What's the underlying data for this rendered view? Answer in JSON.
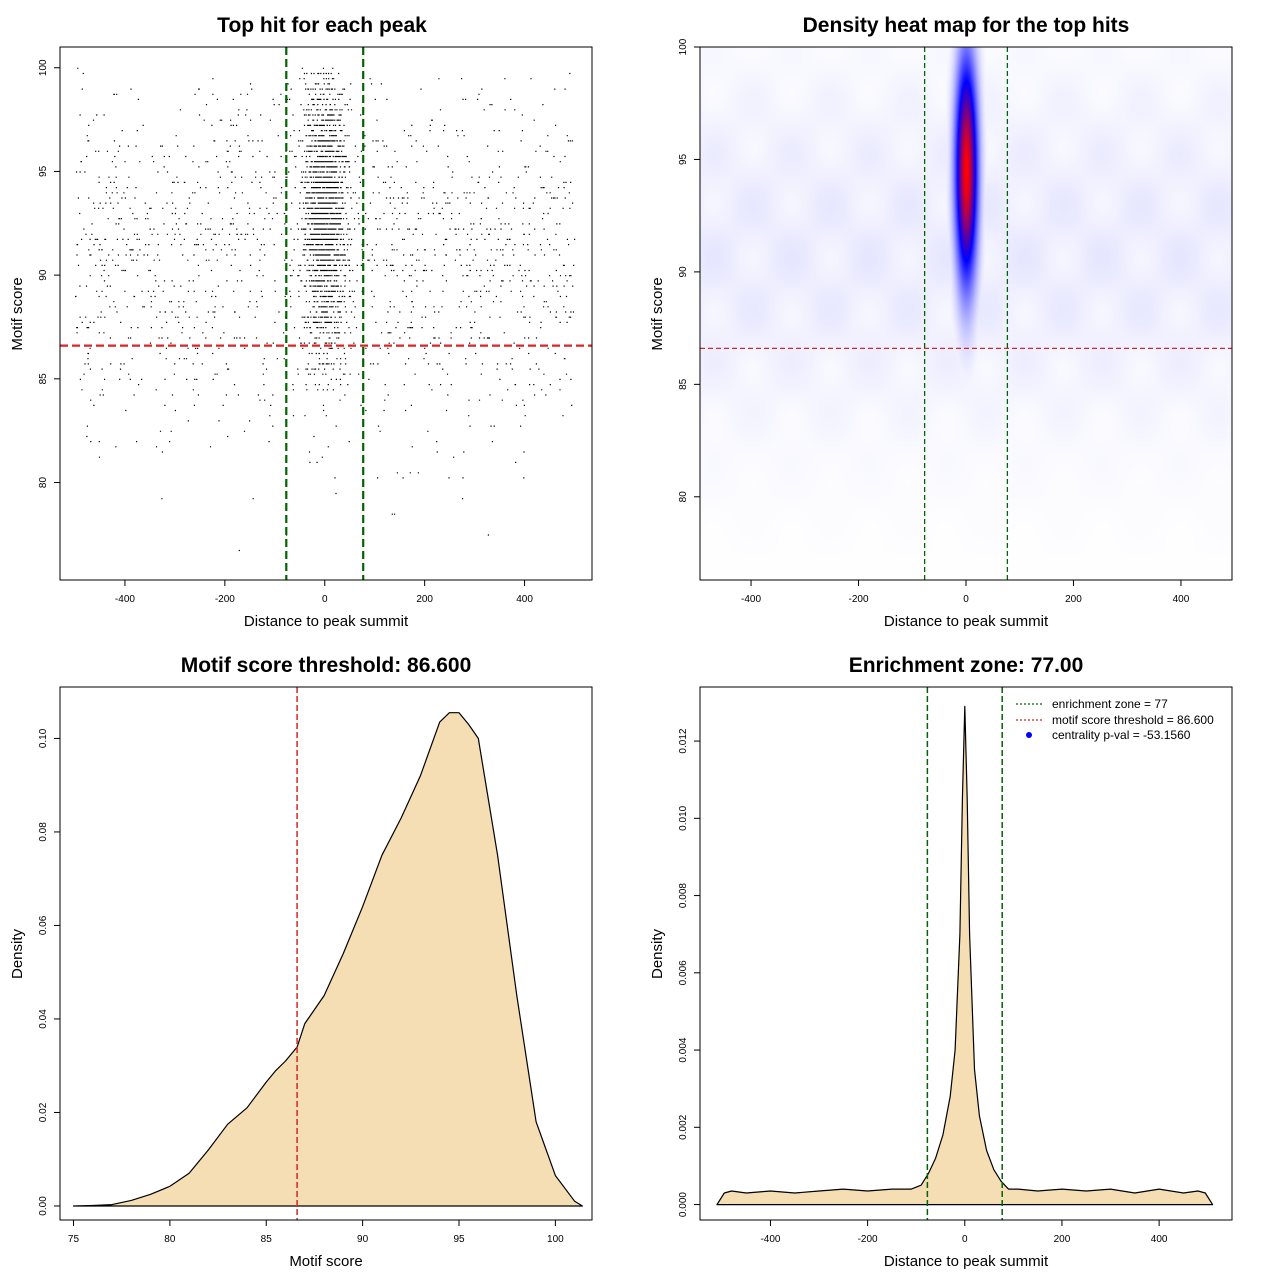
{
  "chart_data": [
    {
      "id": "scatter",
      "type": "scatter",
      "title": "Top hit for each peak",
      "xlabel": "Distance to peak summit",
      "ylabel": "Motif score",
      "xlim": [
        -530,
        535
      ],
      "ylim": [
        75.3,
        101
      ],
      "xticks": [
        -400,
        -200,
        0,
        200,
        400
      ],
      "yticks": [
        80,
        85,
        90,
        95,
        100
      ],
      "vlines": [
        -77,
        77
      ],
      "hlines": [
        86.6
      ],
      "vline_color": "#006400",
      "hline_color": "#d62728",
      "point_color": "#000000",
      "distribution": {
        "x_range": [
          -500,
          500
        ],
        "central_fraction": 0.55,
        "central_x_sd": 20,
        "central_y_mean": 93,
        "central_y_sd": 3.2,
        "background_y_mean": 91,
        "background_y_sd": 4.5,
        "y_range": [
          76.4,
          100
        ]
      }
    },
    {
      "id": "heatmap",
      "type": "heatmap",
      "title": "Density heat map for the top hits",
      "xlabel": "Distance to peak summit",
      "ylabel": "Motif score",
      "xlim": [
        -495,
        495
      ],
      "ylim": [
        76.3,
        100
      ],
      "xticks": [
        -400,
        -200,
        0,
        200,
        400
      ],
      "yticks": [
        80,
        85,
        90,
        95,
        100
      ],
      "vlines": [
        -77,
        77
      ],
      "hlines": [
        86.6
      ],
      "vline_color": "#006400",
      "hline_color": "#d62728",
      "peak": {
        "x": 0,
        "y": 94.5,
        "x_sd": 14,
        "y_sd": 3.4
      },
      "colors": [
        "#ffffff",
        "#0000ff",
        "#ff0000"
      ]
    },
    {
      "id": "score-density",
      "type": "area",
      "title": "Motif score threshold: 86.600",
      "xlabel": "Motif score",
      "ylabel": "Density",
      "xlim": [
        74.3,
        101.9
      ],
      "ylim": [
        -0.003,
        0.111
      ],
      "xticks": [
        75,
        80,
        85,
        90,
        95,
        100
      ],
      "yticks": [
        0.0,
        0.02,
        0.04,
        0.06,
        0.08,
        0.1
      ],
      "ytick_labels": [
        "0.00",
        "0.02",
        "0.04",
        "0.06",
        "0.08",
        "0.10"
      ],
      "vlines": [
        86.6
      ],
      "vline_color": "#d62728",
      "fill": "#f5deb3",
      "x": [
        75,
        76,
        77,
        78,
        79,
        80,
        81,
        82,
        83,
        84,
        85,
        85.5,
        86,
        86.6,
        87,
        88,
        89,
        90,
        91,
        92,
        93,
        94,
        94.5,
        95,
        95.5,
        96,
        97,
        98,
        99,
        100,
        101,
        101.4
      ],
      "y": [
        0.0,
        0.0001,
        0.0003,
        0.0012,
        0.0025,
        0.0042,
        0.007,
        0.012,
        0.0175,
        0.021,
        0.0265,
        0.029,
        0.031,
        0.034,
        0.039,
        0.045,
        0.054,
        0.064,
        0.075,
        0.083,
        0.092,
        0.1035,
        0.1055,
        0.1055,
        0.103,
        0.1,
        0.075,
        0.045,
        0.018,
        0.0065,
        0.001,
        0.0
      ]
    },
    {
      "id": "distance-density",
      "type": "area",
      "title": "Enrichment zone: 77.00",
      "xlabel": "Distance to peak summit",
      "ylabel": "Density",
      "xlim": [
        -545,
        550
      ],
      "ylim": [
        -0.0004,
        0.0134
      ],
      "xticks": [
        -400,
        -200,
        0,
        200,
        400
      ],
      "yticks": [
        0.0,
        0.002,
        0.004,
        0.006,
        0.008,
        0.01,
        0.012
      ],
      "ytick_labels": [
        "0.000",
        "0.002",
        "0.004",
        "0.006",
        "0.008",
        "0.010",
        "0.012"
      ],
      "vlines": [
        -77,
        77
      ],
      "vline_color": "#006400",
      "fill": "#f5deb3",
      "x": [
        -510,
        -495,
        -480,
        -450,
        -400,
        -350,
        -300,
        -250,
        -200,
        -150,
        -110,
        -90,
        -75,
        -60,
        -45,
        -30,
        -20,
        -10,
        -5,
        0,
        5,
        10,
        20,
        30,
        45,
        60,
        75,
        90,
        110,
        150,
        200,
        250,
        300,
        350,
        400,
        450,
        480,
        495,
        510
      ],
      "y": [
        0.0,
        0.0003,
        0.00035,
        0.0003,
        0.00035,
        0.0003,
        0.00035,
        0.0004,
        0.00035,
        0.0004,
        0.0004,
        0.0005,
        0.0008,
        0.0012,
        0.0018,
        0.0028,
        0.004,
        0.007,
        0.0105,
        0.0129,
        0.0105,
        0.007,
        0.0035,
        0.0023,
        0.0014,
        0.0009,
        0.0006,
        0.0004,
        0.0004,
        0.00035,
        0.0004,
        0.00035,
        0.0004,
        0.0003,
        0.0004,
        0.0003,
        0.00035,
        0.0003,
        0.0
      ],
      "legend": [
        {
          "label": "enrichment zone = 77",
          "symbol": "dotted-line",
          "color": "#006400"
        },
        {
          "label": "motif score threshold = 86.600",
          "symbol": "dotted-line",
          "color": "#d62728"
        },
        {
          "label": "centrality p-val = -53.1560",
          "symbol": "dot",
          "color": "#0000ff"
        }
      ],
      "legend_position": "top-right"
    }
  ]
}
